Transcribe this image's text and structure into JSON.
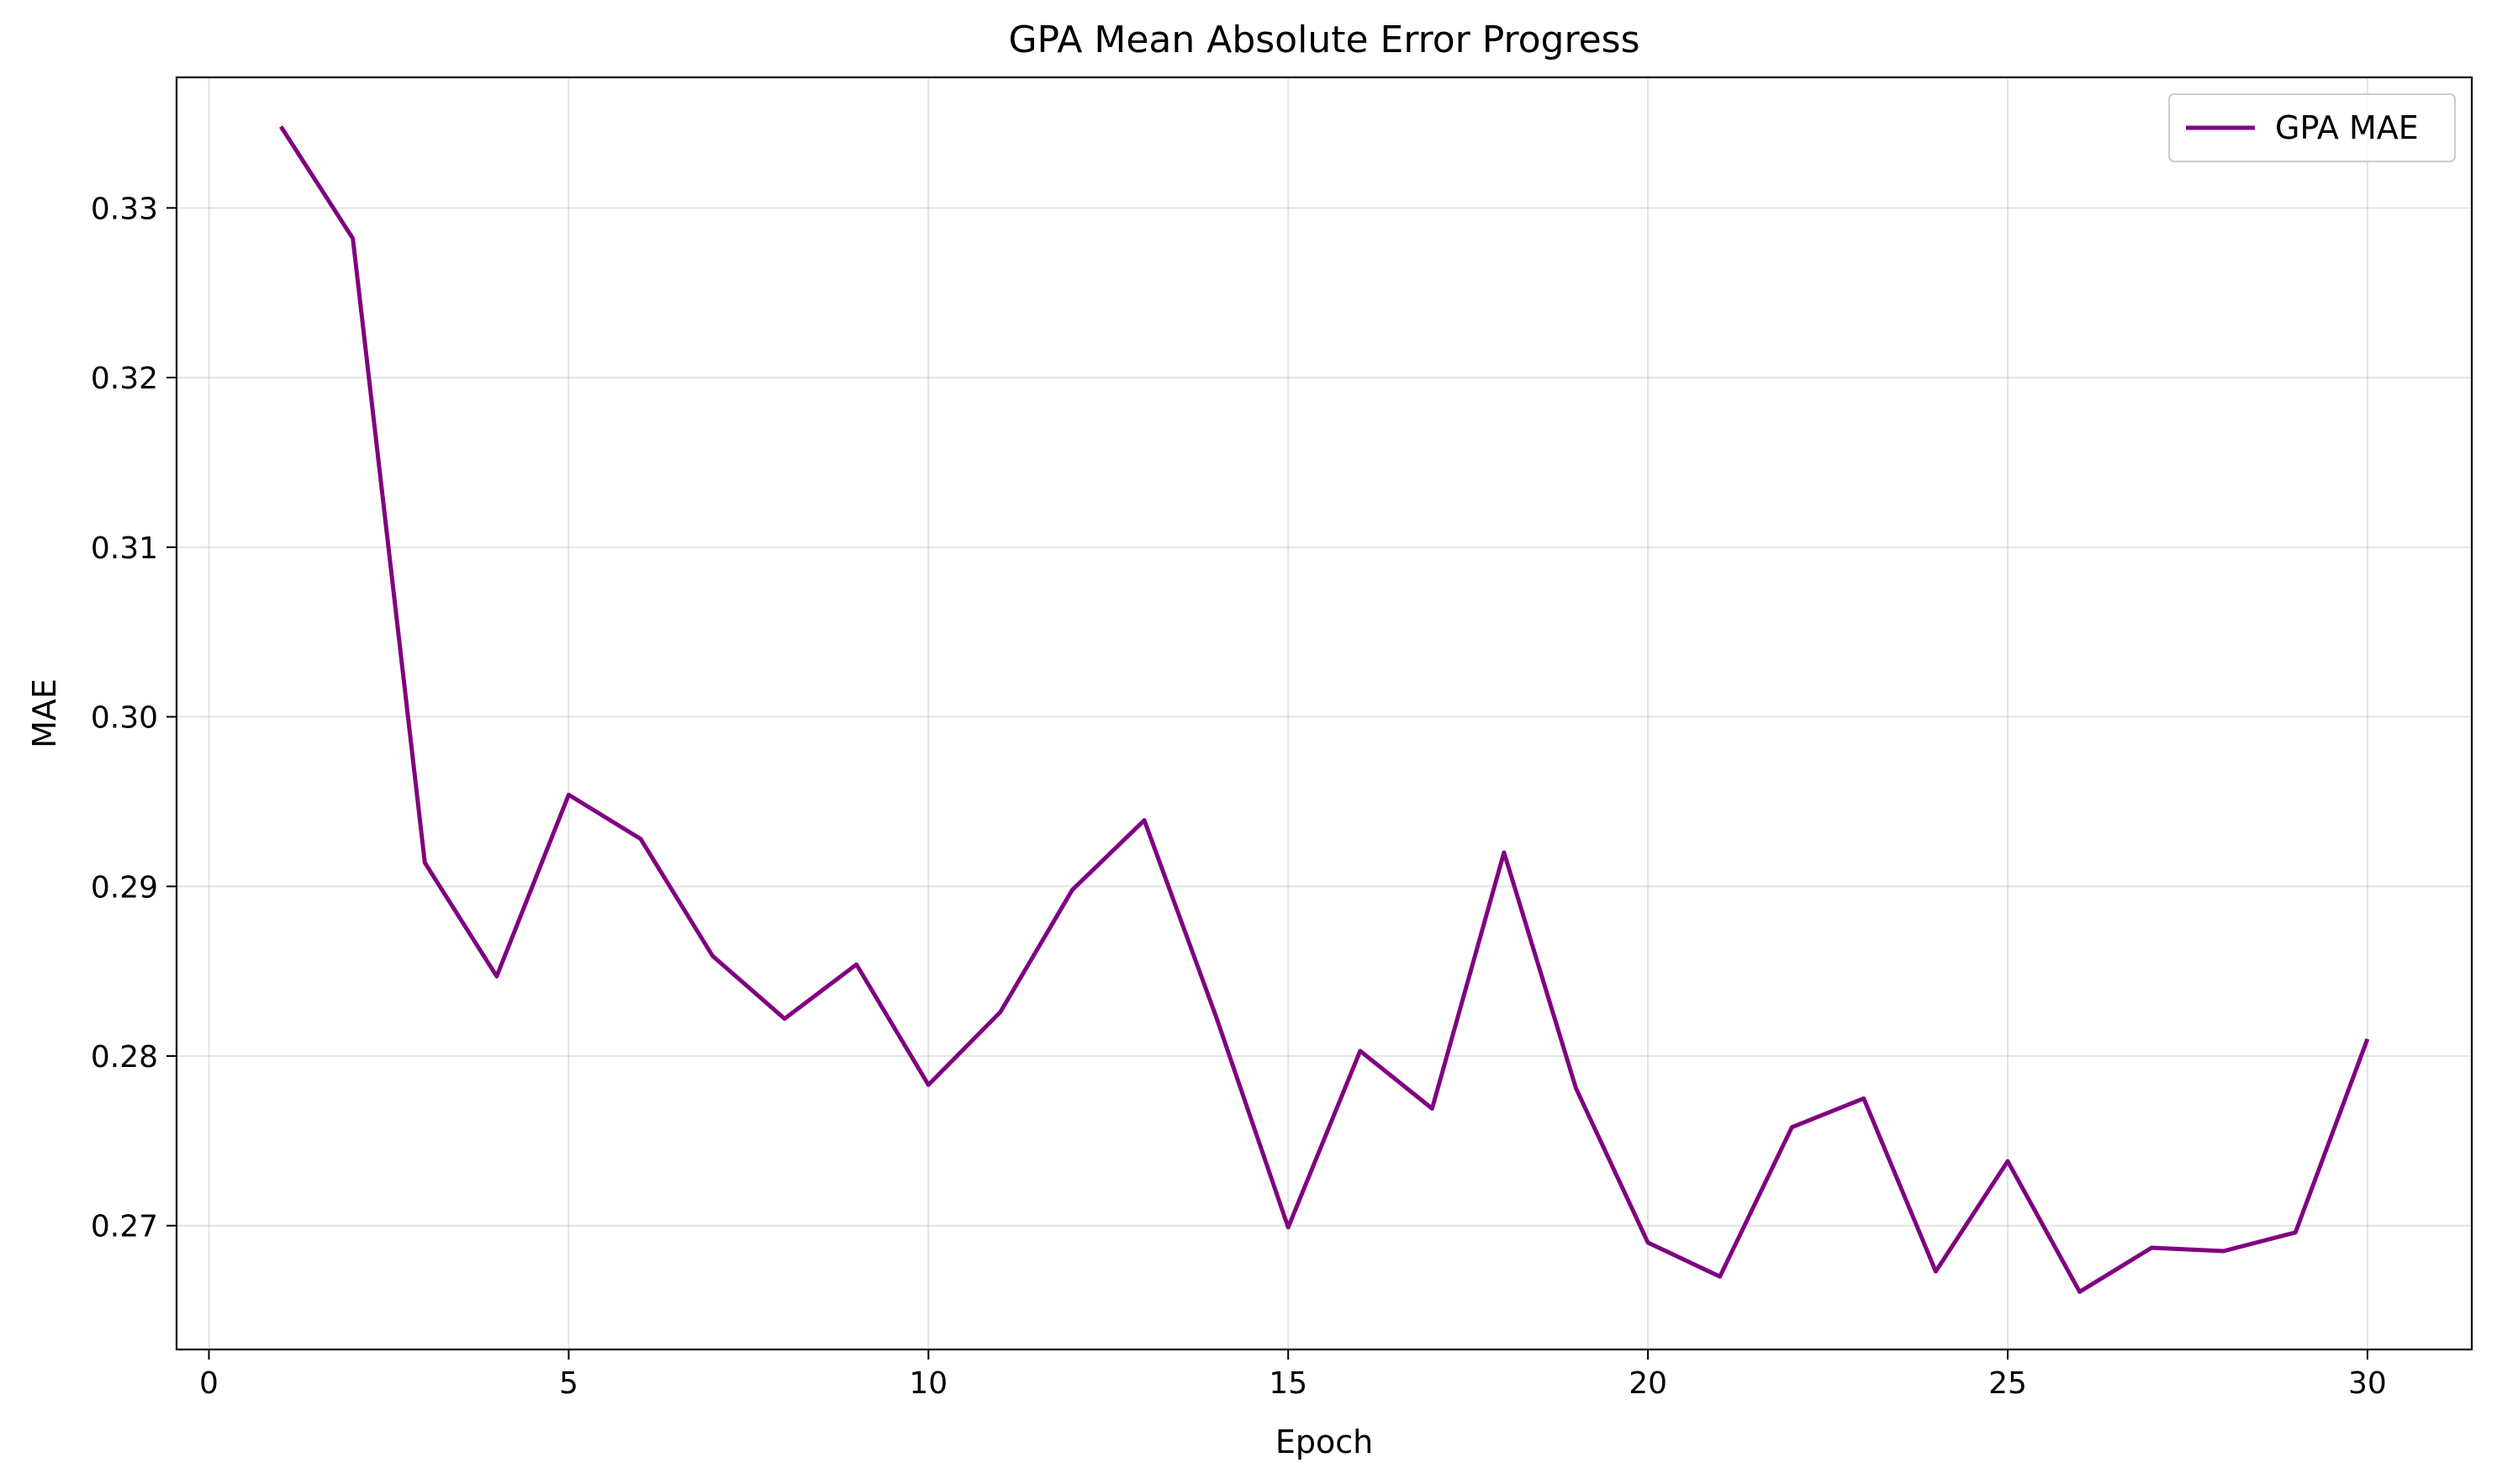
{
  "chart_data": {
    "type": "line",
    "title": "GPA Mean Absolute Error Progress",
    "xlabel": "Epoch",
    "ylabel": "MAE",
    "xlim": [
      -0.45,
      31.45
    ],
    "ylim": [
      0.2627,
      0.3377
    ],
    "xticks": [
      0,
      5,
      10,
      15,
      20,
      25,
      30
    ],
    "yticks": [
      0.27,
      0.28,
      0.29,
      0.3,
      0.31,
      0.32,
      0.33
    ],
    "ytick_labels": [
      "0.27",
      "0.28",
      "0.29",
      "0.30",
      "0.31",
      "0.32",
      "0.33"
    ],
    "grid": true,
    "legend_position": "top-right",
    "series": [
      {
        "name": "GPA MAE",
        "color": "#800080",
        "x": [
          1,
          2,
          3,
          4,
          5,
          6,
          7,
          8,
          9,
          10,
          11,
          12,
          13,
          14,
          15,
          16,
          17,
          18,
          19,
          20,
          21,
          22,
          23,
          24,
          25,
          26,
          27,
          28,
          29,
          30
        ],
        "y": [
          0.3348,
          0.3282,
          0.2914,
          0.2847,
          0.2954,
          0.2928,
          0.2859,
          0.2822,
          0.2854,
          0.2783,
          0.2826,
          0.2898,
          0.2939,
          0.2823,
          0.2699,
          0.2803,
          0.2769,
          0.292,
          0.2781,
          0.269,
          0.267,
          0.2758,
          0.2775,
          0.2673,
          0.2738,
          0.2661,
          0.2687,
          0.2685,
          0.2696,
          0.281
        ]
      }
    ]
  }
}
